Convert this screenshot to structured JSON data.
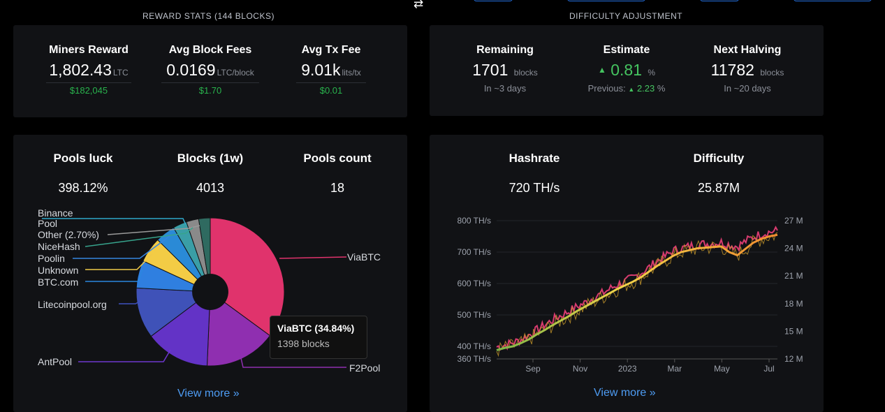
{
  "nav": {
    "swap_icon": "⇄"
  },
  "reward": {
    "title": "REWARD STATS  (144 BLOCKS)",
    "miners_label": "Miners Reward",
    "miners_value": "1,802.43",
    "miners_unit": "LTC",
    "miners_usd": "$182,045",
    "fees_label": "Avg Block Fees",
    "fees_value": "0.0169",
    "fees_unit": "LTC/block",
    "fees_usd": "$1.70",
    "tx_label": "Avg Tx Fee",
    "tx_value": "9.01k",
    "tx_unit": "lits/tx",
    "tx_usd": "$0.01"
  },
  "difficulty": {
    "title": "DIFFICULTY ADJUSTMENT",
    "remaining_label": "Remaining",
    "remaining_value": "1701",
    "remaining_unit": "blocks",
    "remaining_sub": "In ~3 days",
    "estimate_label": "Estimate",
    "estimate_arrow": "▲",
    "estimate_value": "0.81",
    "estimate_unit": "%",
    "previous_label": "Previous:",
    "previous_arrow": "▲",
    "previous_value": "2.23",
    "previous_unit": "%",
    "halving_label": "Next Halving",
    "halving_value": "11782",
    "halving_unit": "blocks",
    "halving_sub": "In ~20 days"
  },
  "pools": {
    "luck_label": "Pools luck",
    "luck_value": "398.12%",
    "blocks_label": "Blocks (1w)",
    "blocks_value": "4013",
    "count_label": "Pools count",
    "count_value": "18",
    "tooltip_title": "ViaBTC (34.84%)",
    "tooltip_sub": "1398 blocks",
    "view_more": "View more »",
    "labels": {
      "binance": "Binance Pool",
      "other": "Other (2.70%)",
      "nicehash": "NiceHash",
      "poolin": "Poolin",
      "unknown": "Unknown",
      "btccom": "BTC.com",
      "litecoinpool": "Litecoinpool.org",
      "antpool": "AntPool",
      "viabtc": "ViaBTC",
      "f2pool": "F2Pool"
    }
  },
  "hash": {
    "hashrate_label": "Hashrate",
    "hashrate_value": "720 TH/s",
    "difficulty_label": "Difficulty",
    "difficulty_value": "25.87M",
    "view_more": "View more »"
  },
  "chart_data": [
    {
      "type": "pie",
      "categories": [
        "ViaBTC",
        "F2Pool",
        "AntPool",
        "Litecoinpool.org",
        "BTC.com",
        "Unknown",
        "Poolin",
        "NiceHash",
        "Other (2.70%)",
        "Binance Pool"
      ],
      "values": [
        34.84,
        15.5,
        14.0,
        11.0,
        6.0,
        5.5,
        4.3,
        3.0,
        2.7,
        2.5
      ],
      "colors": [
        "#e0336c",
        "#8f2fb0",
        "#6333c6",
        "#3f52b8",
        "#2f7fe0",
        "#f3cc45",
        "#2a8ad6",
        "#3a9ea6",
        "#8a8a8a",
        "#2f6a60"
      ],
      "inner_radius_ratio": 0.24
    },
    {
      "type": "line",
      "x_ticks": [
        "Sep",
        "Nov",
        "2023",
        "Mar",
        "May",
        "Jul"
      ],
      "ylabel_left_ticks": [
        "360 TH/s",
        "400 TH/s",
        "500 TH/s",
        "600 TH/s",
        "700 TH/s",
        "800 TH/s"
      ],
      "ylim_left": [
        360,
        800
      ],
      "ylabel_right_ticks": [
        "12 M",
        "15 M",
        "18 M",
        "21 M",
        "24 M",
        "27 M"
      ],
      "ylim_right": [
        12,
        27
      ],
      "series": [
        {
          "color": "#d83b6f",
          "values": [
            392,
            398,
            405,
            415,
            430,
            445,
            462,
            478,
            492,
            505,
            520,
            532,
            548,
            560,
            575,
            590,
            600,
            612,
            628,
            645,
            665,
            680,
            698,
            705,
            712,
            718,
            720,
            722,
            725,
            718,
            712,
            728,
            742,
            752,
            758,
            762
          ]
        },
        {
          "color": "#f0c330",
          "values": [
            388,
            395,
            400,
            410,
            422,
            438,
            452,
            468,
            482,
            496,
            512,
            526,
            540,
            554,
            568,
            582,
            594,
            606,
            620,
            638,
            656,
            672,
            688,
            700,
            706,
            712,
            714,
            716,
            718,
            700,
            690,
            710,
            730,
            742,
            750,
            755
          ]
        }
      ]
    }
  ],
  "colors": {
    "accent": "#4e9cf3",
    "positive": "#45c460",
    "card": "#111215"
  }
}
